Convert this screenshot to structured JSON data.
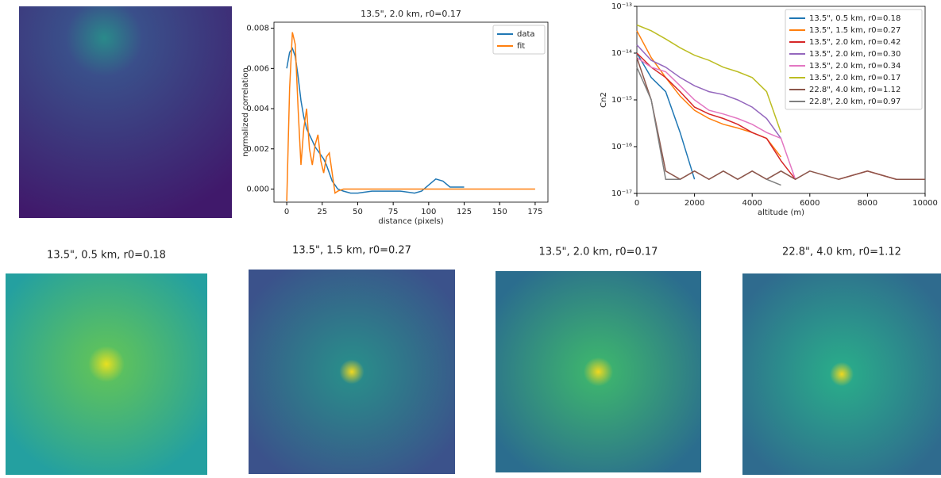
{
  "chart_data": [
    {
      "type": "image"
    },
    {
      "type": "line",
      "title": "13.5\", 2.0 km, r0=0.17",
      "xlabel": "distance (pixels)",
      "ylabel": "normalized correlation",
      "x": [
        0,
        2,
        4,
        6,
        8,
        10,
        12,
        14,
        16,
        18,
        20,
        22,
        24,
        26,
        28,
        30,
        32,
        34,
        36,
        40,
        45,
        50,
        60,
        70,
        80,
        90,
        95,
        100,
        105,
        110,
        115,
        120,
        125,
        150,
        175
      ],
      "series": [
        {
          "name": "data",
          "color": "#1f77b4",
          "values": [
            0.006,
            0.0068,
            0.007,
            0.0066,
            0.0056,
            0.0044,
            0.0036,
            0.003,
            0.0027,
            0.0024,
            0.0021,
            0.0019,
            0.0017,
            0.0015,
            0.0012,
            0.0008,
            0.0004,
            0.0002,
            0.0,
            -0.0001,
            -0.0002,
            -0.0002,
            -0.0001,
            -0.0001,
            -0.0001,
            -0.0002,
            -0.0001,
            0.0002,
            0.0005,
            0.0004,
            0.0001,
            0.0001,
            0.0001,
            null,
            null
          ]
        },
        {
          "name": "fit",
          "color": "#ff7f0e",
          "values": [
            -0.0006,
            0.005,
            0.0078,
            0.0072,
            0.004,
            0.0012,
            0.003,
            0.004,
            0.002,
            0.0012,
            0.0022,
            0.0027,
            0.0014,
            0.0008,
            0.0016,
            0.0018,
            0.0008,
            -0.0002,
            -0.0001,
            0,
            0,
            0,
            0,
            0,
            0,
            0,
            0,
            0,
            0,
            0,
            0,
            0,
            0,
            0,
            0
          ]
        }
      ],
      "xlim": [
        -9,
        184
      ],
      "xticks": [
        0,
        25,
        50,
        75,
        100,
        125,
        150,
        175
      ],
      "ylim": [
        -0.00065,
        0.0083
      ],
      "yticks": [
        {
          "value": 0,
          "label": "0.000"
        },
        {
          "value": 0.002,
          "label": "0.002"
        },
        {
          "value": 0.004,
          "label": "0.004"
        },
        {
          "value": 0.006,
          "label": "0.006"
        },
        {
          "value": 0.008,
          "label": "0.008"
        }
      ],
      "legend": "upper right"
    },
    {
      "type": "line",
      "xlabel": "altitude (m)",
      "ylabel": "Cn2",
      "yscale": "log",
      "x": [
        0,
        500,
        1000,
        1500,
        2000,
        2500,
        3000,
        3500,
        4000,
        4500,
        5000,
        5500,
        6000,
        7000,
        8000,
        9000,
        10000
      ],
      "series": [
        {
          "name": "13.5\", 0.5 km, r0=0.18",
          "color": "#1f77b4",
          "values": [
            1e-14,
            3e-15,
            1.5e-15,
            2e-16,
            2e-17,
            null,
            null,
            null,
            null,
            null,
            null,
            null,
            null,
            null,
            null,
            null,
            null
          ]
        },
        {
          "name": "13.5\", 1.5 km, r0=0.27",
          "color": "#ff7f0e",
          "values": [
            3e-14,
            8e-15,
            3e-15,
            1.2e-15,
            6e-16,
            4e-16,
            3e-16,
            2.5e-16,
            2e-16,
            1.5e-16,
            6e-17,
            null,
            null,
            null,
            null,
            null,
            null
          ]
        },
        {
          "name": "13.5\", 2.0 km, r0=0.42",
          "color": "#d62728",
          "values": [
            1e-14,
            5e-15,
            3e-15,
            1.5e-15,
            7e-16,
            5e-16,
            4e-16,
            3e-16,
            2e-16,
            1.5e-16,
            5e-17,
            2e-17,
            null,
            2e-17,
            3e-17,
            2e-17,
            2e-17
          ]
        },
        {
          "name": "13.5\", 2.0 km, r0=0.30",
          "color": "#9467bd",
          "values": [
            1.5e-14,
            7e-15,
            5e-15,
            3e-15,
            2e-15,
            1.5e-15,
            1.3e-15,
            1e-15,
            7e-16,
            4e-16,
            1.5e-16,
            null,
            null,
            null,
            null,
            null,
            null
          ]
        },
        {
          "name": "13.5\", 2.0 km, r0=0.34",
          "color": "#e377c2",
          "values": [
            8e-15,
            5e-15,
            4e-15,
            2e-15,
            1e-15,
            6e-16,
            5e-16,
            4e-16,
            3e-16,
            2e-16,
            1.5e-16,
            2e-17,
            null,
            null,
            null,
            null,
            null
          ]
        },
        {
          "name": "13.5\", 2.0 km, r0=0.17",
          "color": "#bcbd22",
          "values": [
            4e-14,
            3e-14,
            2e-14,
            1.3e-14,
            9e-15,
            7e-15,
            5e-15,
            4e-15,
            3e-15,
            1.5e-15,
            2e-16,
            null,
            null,
            null,
            null,
            null,
            null
          ]
        },
        {
          "name": "22.8\", 4.0 km, r0=1.12",
          "color": "#8c564b",
          "values": [
            8e-15,
            1e-15,
            3e-17,
            2e-17,
            3e-17,
            2e-17,
            3e-17,
            2e-17,
            3e-17,
            2e-17,
            3e-17,
            2e-17,
            3e-17,
            2e-17,
            3e-17,
            2e-17,
            2e-17
          ]
        },
        {
          "name": "22.8\", 2.0 km, r0=0.97",
          "color": "#7f7f7f",
          "values": [
            5e-15,
            1e-15,
            2e-17,
            2e-17,
            null,
            2e-17,
            null,
            2e-17,
            null,
            2e-17,
            1.5e-17,
            null,
            2e-17,
            null,
            1.5e-17,
            null,
            null
          ]
        }
      ],
      "xlim": [
        0,
        10000
      ],
      "xticks": [
        0,
        2000,
        4000,
        6000,
        8000,
        10000
      ],
      "ylim": [
        1e-17,
        1e-13
      ],
      "yticks": [
        {
          "value": 1e-17,
          "label": "10⁻¹⁷"
        },
        {
          "value": 1e-16,
          "label": "10⁻¹⁶"
        },
        {
          "value": 1e-15,
          "label": "10⁻¹⁵"
        },
        {
          "value": 1e-14,
          "label": "10⁻¹⁴"
        },
        {
          "value": 1e-13,
          "label": "10⁻¹³"
        }
      ],
      "legend": "upper right"
    },
    {
      "type": "image",
      "title": "13.5\", 0.5 km, r0=0.18"
    },
    {
      "type": "image",
      "title": "13.5\", 1.5 km, r0=0.27"
    },
    {
      "type": "image",
      "title": "13.5\", 2.0 km, r0=0.17"
    },
    {
      "type": "image",
      "title": "22.8\", 4.0 km, r0=1.12"
    }
  ]
}
